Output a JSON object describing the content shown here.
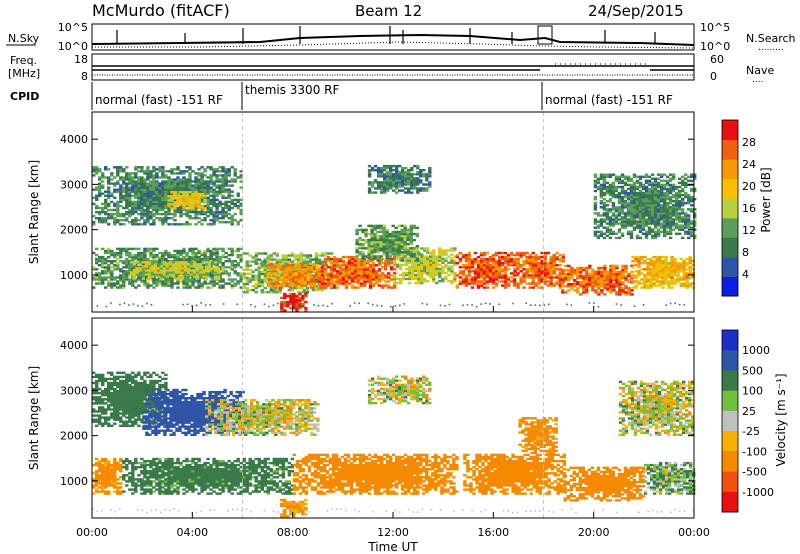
{
  "header": {
    "station": "McMurdo (fitACF)",
    "beam": "Beam 12",
    "date": "24/Sep/2015"
  },
  "top_panel": {
    "left_label": "N.Sky",
    "right_label": "N.Search",
    "right_label_line": ".........",
    "left_ticks": [
      "10^5",
      "10^0"
    ],
    "right_ticks": [
      "10^5",
      "10^0"
    ]
  },
  "freq_panel": {
    "left_label_1": "Freq.",
    "left_label_2": "[MHz]",
    "right_label": "Nave",
    "right_label_line": "....",
    "left_ticks": [
      "18",
      "8"
    ],
    "right_ticks": [
      "60",
      "0"
    ]
  },
  "cpid": {
    "label": "CPID",
    "segments": [
      {
        "start_hour": 0,
        "end_hour": 6,
        "text": "normal (fast) -151 RF"
      },
      {
        "start_hour": 6,
        "end_hour": 18,
        "text": "themis 3300 RF"
      },
      {
        "start_hour": 18,
        "end_hour": 24,
        "text": "normal (fast) -151 RF"
      }
    ]
  },
  "chart_data": [
    {
      "type": "heatmap",
      "title": "",
      "ylabel": "Slant Range [km]",
      "xlabel": "",
      "xlim": [
        0,
        24
      ],
      "ylim": [
        180,
        4600
      ],
      "y_ticks": [
        "1000",
        "2000",
        "3000",
        "4000"
      ],
      "y_tick_values": [
        1000,
        2000,
        3000,
        4000
      ],
      "colorbar": {
        "label": "Power [dB]",
        "ticks": [
          "4",
          "8",
          "12",
          "16",
          "20",
          "24",
          "28"
        ],
        "tick_values": [
          4,
          8,
          12,
          16,
          20,
          24,
          28
        ],
        "range": [
          0,
          32
        ],
        "colors": [
          "#0a1ee6",
          "#2f55a8",
          "#3a7a4a",
          "#5aa05a",
          "#b8d040",
          "#f5c000",
          "#f59a00",
          "#f06010",
          "#e81010"
        ]
      },
      "regions": [
        {
          "t0": 0.0,
          "t1": 6.0,
          "r0": 2100,
          "r1": 3400,
          "value": 10
        },
        {
          "t0": 3.0,
          "t1": 4.5,
          "r0": 2450,
          "r1": 2850,
          "value": 19
        },
        {
          "t0": 0.0,
          "t1": 6.0,
          "r0": 700,
          "r1": 1600,
          "value": 11
        },
        {
          "t0": 1.5,
          "t1": 5.0,
          "r0": 900,
          "r1": 1300,
          "value": 16
        },
        {
          "t0": 6.0,
          "t1": 9.5,
          "r0": 600,
          "r1": 1500,
          "value": 14
        },
        {
          "t0": 7.0,
          "t1": 9.3,
          "r0": 700,
          "r1": 1200,
          "value": 24
        },
        {
          "t0": 7.5,
          "t1": 8.5,
          "r0": 200,
          "r1": 600,
          "value": 30
        },
        {
          "t0": 9.0,
          "t1": 12.0,
          "r0": 700,
          "r1": 1400,
          "value": 26
        },
        {
          "t0": 12.0,
          "t1": 14.5,
          "r0": 800,
          "r1": 1600,
          "value": 16
        },
        {
          "t0": 10.5,
          "t1": 13.0,
          "r0": 1300,
          "r1": 2100,
          "value": 12
        },
        {
          "t0": 11.0,
          "t1": 13.5,
          "r0": 2800,
          "r1": 3400,
          "value": 9
        },
        {
          "t0": 14.5,
          "t1": 17.0,
          "r0": 700,
          "r1": 1500,
          "value": 27
        },
        {
          "t0": 16.8,
          "t1": 18.8,
          "r0": 700,
          "r1": 1500,
          "value": 26
        },
        {
          "t0": 18.7,
          "t1": 21.5,
          "r0": 550,
          "r1": 1200,
          "value": 26
        },
        {
          "t0": 21.5,
          "t1": 24.0,
          "r0": 700,
          "r1": 1400,
          "value": 21
        },
        {
          "t0": 20.0,
          "t1": 24.0,
          "r0": 1800,
          "r1": 3200,
          "value": 10
        }
      ]
    },
    {
      "type": "heatmap",
      "title": "",
      "ylabel": "Slant Range [km]",
      "xlabel": "Time UT",
      "xlim": [
        0,
        24
      ],
      "ylim": [
        180,
        4600
      ],
      "x_ticks": [
        "00:00",
        "04:00",
        "08:00",
        "12:00",
        "16:00",
        "20:00",
        "00:00"
      ],
      "x_tick_values": [
        0,
        4,
        8,
        12,
        16,
        20,
        24
      ],
      "y_ticks": [
        "1000",
        "2000",
        "3000",
        "4000"
      ],
      "y_tick_values": [
        1000,
        2000,
        3000,
        4000
      ],
      "colorbar": {
        "label": "Velocity [m s⁻¹]",
        "ticks": [
          "1000",
          "500",
          "100",
          "25",
          "-25",
          "-100",
          "-500",
          "-1000"
        ],
        "colors": [
          "#1c30c8",
          "#2f55a8",
          "#3a7a4a",
          "#70c040",
          "#c0c0c0",
          "#f5b000",
          "#f58a00",
          "#f05010",
          "#e81010"
        ]
      },
      "regions": [
        {
          "t0": 0.0,
          "t1": 3.0,
          "r0": 2200,
          "r1": 3400,
          "value": 350
        },
        {
          "t0": 2.0,
          "t1": 6.0,
          "r0": 2000,
          "r1": 3000,
          "value": 700
        },
        {
          "t0": 4.5,
          "t1": 9.0,
          "r0": 2000,
          "r1": 2800,
          "value": 0
        },
        {
          "t0": 0.0,
          "t1": 1.2,
          "r0": 700,
          "r1": 1500,
          "value": -200
        },
        {
          "t0": 1.2,
          "t1": 8.0,
          "r0": 700,
          "r1": 1500,
          "value": 200
        },
        {
          "t0": 7.5,
          "t1": 8.5,
          "r0": 200,
          "r1": 600,
          "value": -150
        },
        {
          "t0": 8.0,
          "t1": 14.5,
          "r0": 700,
          "r1": 1600,
          "value": -250
        },
        {
          "t0": 11.0,
          "t1": 13.5,
          "r0": 2700,
          "r1": 3300,
          "value": 0
        },
        {
          "t0": 14.8,
          "t1": 18.8,
          "r0": 700,
          "r1": 1600,
          "value": -250
        },
        {
          "t0": 17.0,
          "t1": 18.5,
          "r0": 1600,
          "r1": 2400,
          "value": -200
        },
        {
          "t0": 18.8,
          "t1": 22.0,
          "r0": 550,
          "r1": 1300,
          "value": -250
        },
        {
          "t0": 22.0,
          "t1": 24.0,
          "r0": 700,
          "r1": 1400,
          "value": 80
        },
        {
          "t0": 21.0,
          "t1": 24.0,
          "r0": 2000,
          "r1": 3200,
          "value": 0
        }
      ]
    }
  ]
}
